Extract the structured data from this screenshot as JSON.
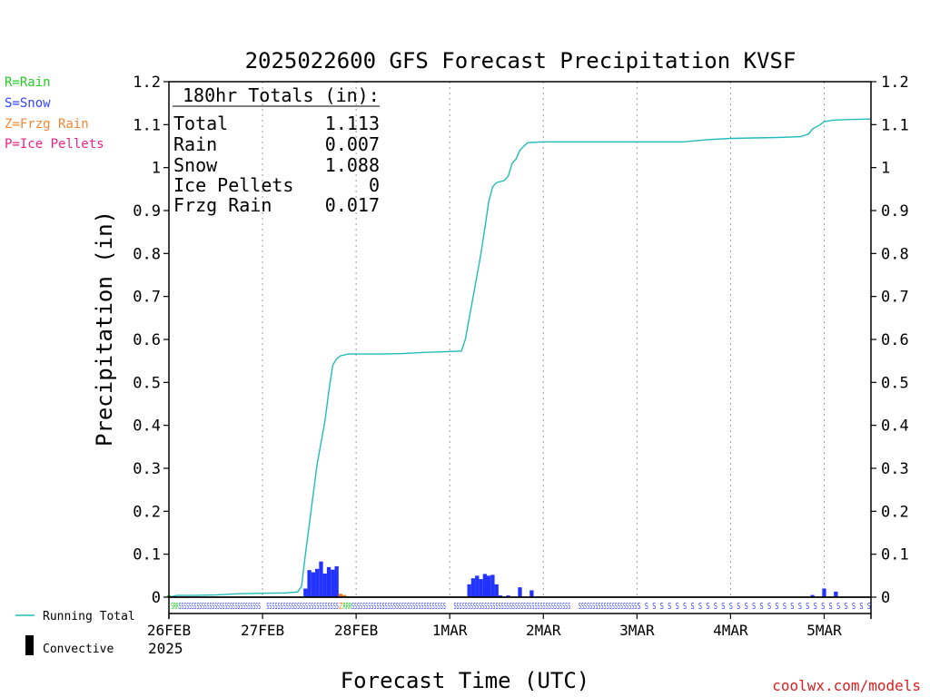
{
  "chart_data": {
    "type": "bar+line",
    "title": "2025022600 GFS Forecast Precipitation KVSF",
    "ylabel": "Precipitation (in)",
    "xlabel": "Forecast Time (UTC)",
    "ylim": [
      0,
      1.2
    ],
    "yticks": [
      "0",
      "0.1",
      "0.2",
      "0.3",
      "0.4",
      "0.5",
      "0.6",
      "0.7",
      "0.8",
      "0.9",
      "1",
      "1.1",
      "1.2"
    ],
    "x_range_hours": [
      0,
      180
    ],
    "xticks": [
      {
        "label": "26FEB",
        "hour": 0
      },
      {
        "label": "27FEB",
        "hour": 24
      },
      {
        "label": "28FEB",
        "hour": 48
      },
      {
        "label": "1MAR",
        "hour": 72
      },
      {
        "label": "2MAR",
        "hour": 96
      },
      {
        "label": "3MAR",
        "hour": 120
      },
      {
        "label": "4MAR",
        "hour": 144
      },
      {
        "label": "5MAR",
        "hour": 168
      }
    ],
    "year_label": "2025",
    "grid": "vertical dotted at each day",
    "type_legend": [
      {
        "text": "R=Rain",
        "color": "#22cc22"
      },
      {
        "text": "S=Snow",
        "color": "#3344ff"
      },
      {
        "text": "Z=Frzg Rain",
        "color": "#ee8833"
      },
      {
        "text": "P=Ice Pellets",
        "color": "#ee2288"
      }
    ],
    "series_legend": [
      {
        "text": "Running Total",
        "color": "#22bbbb"
      },
      {
        "text": "Convective",
        "color": "#000000"
      }
    ],
    "totals": {
      "header": "180hr Totals (in):",
      "rows": [
        {
          "label": "Total",
          "value": "1.113"
        },
        {
          "label": "Rain",
          "value": "0.007"
        },
        {
          "label": "Snow",
          "value": "1.088"
        },
        {
          "label": "Ice Pellets",
          "value": "0"
        },
        {
          "label": "Frzg Rain",
          "value": "0.017"
        }
      ]
    },
    "precip_bars": [
      {
        "hour": 0,
        "value": 0.004,
        "type": "rain"
      },
      {
        "hour": 35,
        "value": 0.02,
        "type": "snow"
      },
      {
        "hour": 36,
        "value": 0.063,
        "type": "snow"
      },
      {
        "hour": 37,
        "value": 0.058,
        "type": "snow"
      },
      {
        "hour": 38,
        "value": 0.066,
        "type": "snow"
      },
      {
        "hour": 39,
        "value": 0.083,
        "type": "snow"
      },
      {
        "hour": 40,
        "value": 0.055,
        "type": "snow"
      },
      {
        "hour": 41,
        "value": 0.07,
        "type": "snow"
      },
      {
        "hour": 42,
        "value": 0.064,
        "type": "snow"
      },
      {
        "hour": 43,
        "value": 0.072,
        "type": "snow"
      },
      {
        "hour": 44,
        "value": 0.008,
        "type": "frzg_rain"
      },
      {
        "hour": 45,
        "value": 0.005,
        "type": "frzg_rain"
      },
      {
        "hour": 46,
        "value": 0.002,
        "type": "rain"
      },
      {
        "hour": 58,
        "value": 0.001,
        "type": "snow"
      },
      {
        "hour": 60,
        "value": 0.001,
        "type": "snow"
      },
      {
        "hour": 77,
        "value": 0.03,
        "type": "snow"
      },
      {
        "hour": 78,
        "value": 0.044,
        "type": "snow"
      },
      {
        "hour": 79,
        "value": 0.05,
        "type": "snow"
      },
      {
        "hour": 80,
        "value": 0.042,
        "type": "snow"
      },
      {
        "hour": 81,
        "value": 0.054,
        "type": "snow"
      },
      {
        "hour": 82,
        "value": 0.05,
        "type": "snow"
      },
      {
        "hour": 83,
        "value": 0.052,
        "type": "snow"
      },
      {
        "hour": 84,
        "value": 0.03,
        "type": "snow"
      },
      {
        "hour": 85,
        "value": 0.004,
        "type": "snow"
      },
      {
        "hour": 87,
        "value": 0.004,
        "type": "snow"
      },
      {
        "hour": 90,
        "value": 0.023,
        "type": "snow"
      },
      {
        "hour": 93,
        "value": 0.016,
        "type": "snow"
      },
      {
        "hour": 95,
        "value": 0.002,
        "type": "snow"
      },
      {
        "hour": 153,
        "value": 0.001,
        "type": "snow"
      },
      {
        "hour": 162,
        "value": 0.001,
        "type": "snow"
      },
      {
        "hour": 165,
        "value": 0.005,
        "type": "snow"
      },
      {
        "hour": 168,
        "value": 0.02,
        "type": "snow"
      },
      {
        "hour": 171,
        "value": 0.013,
        "type": "snow"
      }
    ],
    "running_total": [
      [
        0,
        0.0
      ],
      [
        2,
        0.004
      ],
      [
        6,
        0.004
      ],
      [
        12,
        0.005
      ],
      [
        18,
        0.008
      ],
      [
        24,
        0.009
      ],
      [
        30,
        0.01
      ],
      [
        33,
        0.012
      ],
      [
        34,
        0.025
      ],
      [
        35,
        0.1
      ],
      [
        36,
        0.17
      ],
      [
        37,
        0.24
      ],
      [
        38,
        0.31
      ],
      [
        39,
        0.36
      ],
      [
        40,
        0.41
      ],
      [
        41,
        0.48
      ],
      [
        42,
        0.54
      ],
      [
        43,
        0.555
      ],
      [
        44,
        0.562
      ],
      [
        46,
        0.566
      ],
      [
        48,
        0.566
      ],
      [
        54,
        0.566
      ],
      [
        60,
        0.567
      ],
      [
        66,
        0.57
      ],
      [
        70,
        0.571
      ],
      [
        75,
        0.573
      ],
      [
        76,
        0.6
      ],
      [
        77,
        0.65
      ],
      [
        78,
        0.7
      ],
      [
        79,
        0.75
      ],
      [
        80,
        0.8
      ],
      [
        81,
        0.86
      ],
      [
        82,
        0.92
      ],
      [
        83,
        0.955
      ],
      [
        84,
        0.965
      ],
      [
        86,
        0.97
      ],
      [
        87,
        0.98
      ],
      [
        88,
        1.01
      ],
      [
        89,
        1.02
      ],
      [
        90,
        1.04
      ],
      [
        91,
        1.05
      ],
      [
        92,
        1.058
      ],
      [
        96,
        1.06
      ],
      [
        108,
        1.06
      ],
      [
        120,
        1.06
      ],
      [
        132,
        1.06
      ],
      [
        138,
        1.065
      ],
      [
        144,
        1.068
      ],
      [
        150,
        1.069
      ],
      [
        156,
        1.07
      ],
      [
        162,
        1.072
      ],
      [
        164,
        1.078
      ],
      [
        165,
        1.09
      ],
      [
        166,
        1.095
      ],
      [
        167,
        1.1
      ],
      [
        168,
        1.107
      ],
      [
        170,
        1.11
      ],
      [
        174,
        1.112
      ],
      [
        180,
        1.113
      ]
    ],
    "ptype_strip": [
      {
        "hour_start": 0.5,
        "hour_end": 2.5,
        "text": "SRR",
        "color": "#22cc22"
      },
      {
        "hour_start": 2.5,
        "hour_end": 23.5,
        "text": "SSSSSSSSSSSSSSSSSSSSSSSSSSSSSSSS",
        "color": "#3344ff"
      },
      {
        "hour_start": 25,
        "hour_end": 43.5,
        "text": "SSSSSSSSSSSSSSSSSSSSSSSSSS",
        "color": "#3344ff"
      },
      {
        "hour_start": 43.5,
        "hour_end": 44.6,
        "text": "Z",
        "color": "#ee8833"
      },
      {
        "hour_start": 44.6,
        "hour_end": 46.8,
        "text": "RRR",
        "color": "#22cc22"
      },
      {
        "hour_start": 46.8,
        "hour_end": 71,
        "text": "SSSSSSSSSSSSSSSSSSSSSSSSSSSSSSSSSS",
        "color": "#3344ff"
      },
      {
        "hour_start": 73,
        "hour_end": 103,
        "text": "SSSSSSSSSSSSSSSSSSSSSSSSSSSSSSSSSSSSSSSSSS",
        "color": "#3344ff"
      },
      {
        "hour_start": 105,
        "hour_end": 120,
        "text": "SSSSSSSSSSSSSSSSSSSSS",
        "color": "#3344ff"
      },
      {
        "hour_start": 120,
        "hour_end": 180,
        "text": "S S S S S S S S S S S S S S S S S S S S S S S S S S S S S S S",
        "color": "#3344ff"
      }
    ],
    "colors": {
      "snow": "#2233ff",
      "rain": "#22cc22",
      "frzg_rain": "#ee7722",
      "ice_pellets": "#ee2288",
      "running_total": "#22bbbb",
      "grid": "#999999"
    }
  },
  "credit": "coolwx.com/models"
}
